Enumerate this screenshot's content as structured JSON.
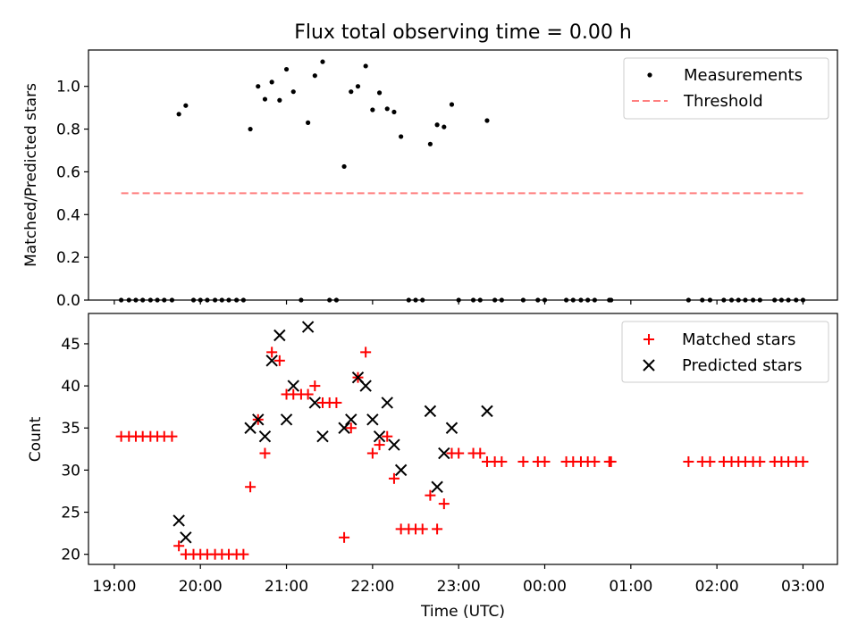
{
  "title": "Flux total observing time = 0.00 h",
  "xlabel": "Time (UTC)",
  "x_tick_labels": [
    "19:00",
    "20:00",
    "21:00",
    "22:00",
    "23:00",
    "00:00",
    "01:00",
    "02:00",
    "03:00"
  ],
  "colors": {
    "measurements": "#000000",
    "threshold": "#ff7f7f",
    "matched": "#ff0000",
    "predicted": "#000000"
  },
  "chart_data": [
    {
      "type": "scatter",
      "ylabel": "Matched/Predicted stars",
      "xlim_hours": [
        18.7,
        27.4
      ],
      "ylim": [
        0,
        1.17
      ],
      "y_ticks": [
        "0.0",
        "0.2",
        "0.4",
        "0.6",
        "0.8",
        "1.0"
      ],
      "legend": {
        "placement": "upper right",
        "entries": [
          "Measurements",
          "Threshold"
        ]
      },
      "threshold": {
        "name": "Threshold",
        "value": 0.5,
        "x_range_hours": [
          19.08,
          27.0
        ]
      },
      "series": [
        {
          "name": "Measurements",
          "points": [
            [
              19.08,
              0
            ],
            [
              19.17,
              0
            ],
            [
              19.25,
              0
            ],
            [
              19.33,
              0
            ],
            [
              19.42,
              0
            ],
            [
              19.5,
              0
            ],
            [
              19.58,
              0
            ],
            [
              19.67,
              0
            ],
            [
              19.75,
              0.87
            ],
            [
              19.83,
              0.91
            ],
            [
              19.92,
              0
            ],
            [
              20.0,
              0
            ],
            [
              20.08,
              0
            ],
            [
              20.17,
              0
            ],
            [
              20.25,
              0
            ],
            [
              20.33,
              0
            ],
            [
              20.42,
              0
            ],
            [
              20.5,
              0
            ],
            [
              20.58,
              0.8
            ],
            [
              20.67,
              1.0
            ],
            [
              20.75,
              0.94
            ],
            [
              20.83,
              1.02
            ],
            [
              20.92,
              0.935
            ],
            [
              21.0,
              1.08
            ],
            [
              21.08,
              0.975
            ],
            [
              21.17,
              0
            ],
            [
              21.25,
              0.83
            ],
            [
              21.33,
              1.05
            ],
            [
              21.42,
              1.115
            ],
            [
              21.5,
              0
            ],
            [
              21.58,
              0
            ],
            [
              21.67,
              0.625
            ],
            [
              21.75,
              0.975
            ],
            [
              21.83,
              1.0
            ],
            [
              21.92,
              1.095
            ],
            [
              22.0,
              0.89
            ],
            [
              22.08,
              0.97
            ],
            [
              22.17,
              0.895
            ],
            [
              22.25,
              0.88
            ],
            [
              22.33,
              0.765
            ],
            [
              22.42,
              0
            ],
            [
              22.5,
              0
            ],
            [
              22.58,
              0
            ],
            [
              22.67,
              0.73
            ],
            [
              22.75,
              0.82
            ],
            [
              22.83,
              0.81
            ],
            [
              22.92,
              0.915
            ],
            [
              23.0,
              0
            ],
            [
              23.17,
              0
            ],
            [
              23.25,
              0
            ],
            [
              23.33,
              0.84
            ],
            [
              23.42,
              0
            ],
            [
              23.5,
              0
            ],
            [
              23.75,
              0
            ],
            [
              23.92,
              0
            ],
            [
              24.0,
              0
            ],
            [
              24.25,
              0
            ],
            [
              24.33,
              0
            ],
            [
              24.42,
              0
            ],
            [
              24.5,
              0
            ],
            [
              24.58,
              0
            ],
            [
              24.75,
              0
            ],
            [
              24.77,
              0
            ],
            [
              25.67,
              0
            ],
            [
              25.83,
              0
            ],
            [
              25.92,
              0
            ],
            [
              26.08,
              0
            ],
            [
              26.17,
              0
            ],
            [
              26.25,
              0
            ],
            [
              26.33,
              0
            ],
            [
              26.42,
              0
            ],
            [
              26.5,
              0
            ],
            [
              26.67,
              0
            ],
            [
              26.75,
              0
            ],
            [
              26.83,
              0
            ],
            [
              26.92,
              0
            ],
            [
              27.0,
              0
            ]
          ]
        }
      ]
    },
    {
      "type": "scatter",
      "ylabel": "Count",
      "xlabel": "Time (UTC)",
      "xlim_hours": [
        18.7,
        27.4
      ],
      "ylim": [
        18.8,
        48.6
      ],
      "y_ticks": [
        "20",
        "25",
        "30",
        "35",
        "40",
        "45"
      ],
      "legend": {
        "placement": "upper right",
        "entries": [
          "Matched stars",
          "Predicted stars"
        ]
      },
      "series": [
        {
          "name": "Matched stars",
          "marker": "+",
          "points": [
            [
              19.08,
              34
            ],
            [
              19.17,
              34
            ],
            [
              19.25,
              34
            ],
            [
              19.33,
              34
            ],
            [
              19.42,
              34
            ],
            [
              19.5,
              34
            ],
            [
              19.58,
              34
            ],
            [
              19.67,
              34
            ],
            [
              19.75,
              21
            ],
            [
              19.83,
              20
            ],
            [
              19.92,
              20
            ],
            [
              20.0,
              20
            ],
            [
              20.08,
              20
            ],
            [
              20.17,
              20
            ],
            [
              20.25,
              20
            ],
            [
              20.33,
              20
            ],
            [
              20.42,
              20
            ],
            [
              20.5,
              20
            ],
            [
              20.58,
              28
            ],
            [
              20.67,
              36
            ],
            [
              20.75,
              32
            ],
            [
              20.83,
              44
            ],
            [
              20.92,
              43
            ],
            [
              21.0,
              39
            ],
            [
              21.08,
              39
            ],
            [
              21.17,
              39
            ],
            [
              21.25,
              39
            ],
            [
              21.33,
              40
            ],
            [
              21.42,
              38
            ],
            [
              21.5,
              38
            ],
            [
              21.58,
              38
            ],
            [
              21.67,
              22
            ],
            [
              21.75,
              35
            ],
            [
              21.83,
              41
            ],
            [
              21.92,
              44
            ],
            [
              22.0,
              32
            ],
            [
              22.08,
              33
            ],
            [
              22.17,
              34
            ],
            [
              22.25,
              29
            ],
            [
              22.33,
              23
            ],
            [
              22.42,
              23
            ],
            [
              22.5,
              23
            ],
            [
              22.58,
              23
            ],
            [
              22.67,
              27
            ],
            [
              22.75,
              23
            ],
            [
              22.83,
              26
            ],
            [
              22.92,
              32
            ],
            [
              23.0,
              32
            ],
            [
              23.17,
              32
            ],
            [
              23.25,
              32
            ],
            [
              23.33,
              31
            ],
            [
              23.42,
              31
            ],
            [
              23.5,
              31
            ],
            [
              23.75,
              31
            ],
            [
              23.92,
              31
            ],
            [
              24.0,
              31
            ],
            [
              24.25,
              31
            ],
            [
              24.33,
              31
            ],
            [
              24.42,
              31
            ],
            [
              24.5,
              31
            ],
            [
              24.58,
              31
            ],
            [
              24.75,
              31
            ],
            [
              24.77,
              31
            ],
            [
              25.67,
              31
            ],
            [
              25.83,
              31
            ],
            [
              25.92,
              31
            ],
            [
              26.08,
              31
            ],
            [
              26.17,
              31
            ],
            [
              26.25,
              31
            ],
            [
              26.33,
              31
            ],
            [
              26.42,
              31
            ],
            [
              26.5,
              31
            ],
            [
              26.67,
              31
            ],
            [
              26.75,
              31
            ],
            [
              26.83,
              31
            ],
            [
              26.92,
              31
            ],
            [
              27.0,
              31
            ]
          ]
        },
        {
          "name": "Predicted stars",
          "marker": "x",
          "points": [
            [
              19.75,
              24
            ],
            [
              19.83,
              22
            ],
            [
              20.58,
              35
            ],
            [
              20.67,
              36
            ],
            [
              20.75,
              34
            ],
            [
              20.83,
              43
            ],
            [
              20.92,
              46
            ],
            [
              21.0,
              36
            ],
            [
              21.08,
              40
            ],
            [
              21.25,
              47
            ],
            [
              21.33,
              38
            ],
            [
              21.42,
              34
            ],
            [
              21.67,
              35
            ],
            [
              21.75,
              36
            ],
            [
              21.83,
              41
            ],
            [
              21.92,
              40
            ],
            [
              22.0,
              36
            ],
            [
              22.08,
              34
            ],
            [
              22.17,
              38
            ],
            [
              22.25,
              33
            ],
            [
              22.33,
              30
            ],
            [
              22.67,
              37
            ],
            [
              22.75,
              28
            ],
            [
              22.83,
              32
            ],
            [
              22.92,
              35
            ],
            [
              23.33,
              37
            ]
          ]
        }
      ]
    }
  ]
}
